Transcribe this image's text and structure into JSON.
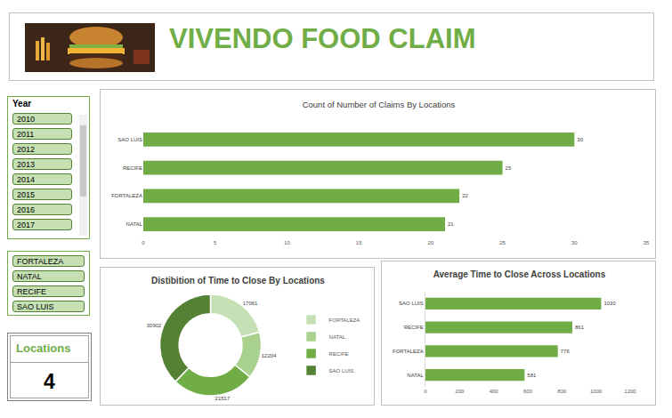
{
  "header": {
    "title": "VIVENDO FOOD CLAIM"
  },
  "slicers": [
    {
      "title": "Year",
      "items": [
        "2010",
        "2011",
        "2012",
        "2013",
        "2014",
        "2015",
        "2016",
        "2017"
      ]
    },
    {
      "items": [
        "FORTALEZA",
        "NATAL",
        "RECIFE",
        "SAO LUIS"
      ]
    }
  ],
  "card": {
    "label": "Locations",
    "value": 4
  },
  "chart_data": [
    {
      "type": "bar",
      "orientation": "horizontal",
      "title": "Count of Number of Claims By Locations",
      "categories": [
        "NATAL",
        "FORTALEZA",
        "RECIFE",
        "SAO LUIS"
      ],
      "values": [
        21,
        22,
        25,
        30
      ],
      "color": "#70ad47",
      "xlim": [
        0,
        35
      ],
      "xticks": [
        0,
        5,
        10,
        15,
        20,
        25,
        30,
        35
      ],
      "grid": false,
      "data_labels": true
    },
    {
      "type": "donut",
      "title": "Distibition of Time to Close By Locations",
      "categories": [
        "FORTALEZA",
        "NATAL",
        "RECIFE",
        "SAO LUIS"
      ],
      "values": [
        17061,
        12204,
        21517,
        30902
      ],
      "colors": [
        "#c5e0b4",
        "#a9d18e",
        "#70ad47",
        "#548235"
      ],
      "legend": "right",
      "data_labels": true
    },
    {
      "type": "bar",
      "orientation": "horizontal",
      "title": "Average Time to Close Across Locations",
      "categories": [
        "NATAL",
        "FORTALEZA",
        "RECIFE",
        "SAO LUIS"
      ],
      "values": [
        581,
        776,
        861,
        1030
      ],
      "color": "#70ad47",
      "xlim": [
        0,
        1200
      ],
      "xticks": [
        0,
        200,
        400,
        600,
        800,
        1000,
        1200
      ],
      "grid": false,
      "data_labels": true
    }
  ]
}
